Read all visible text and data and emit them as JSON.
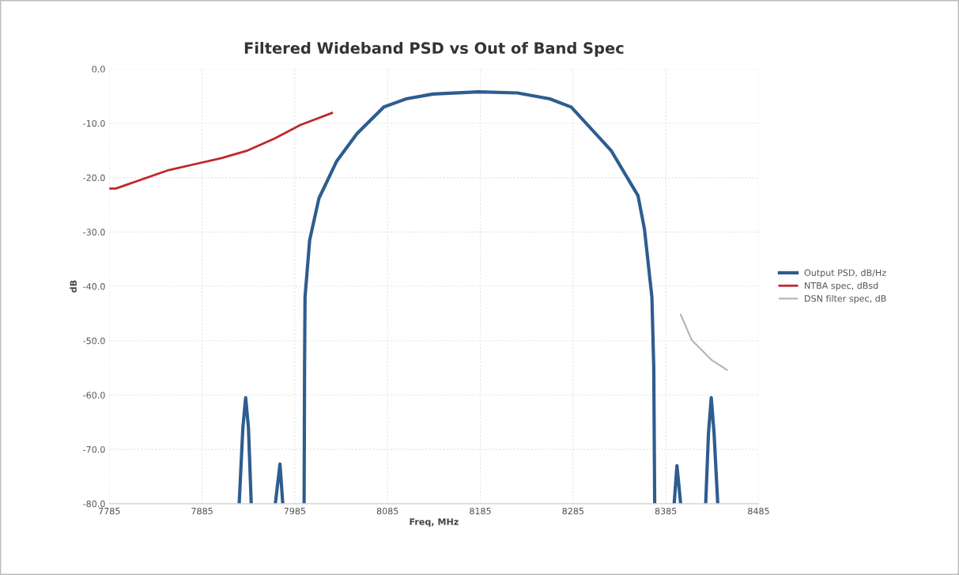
{
  "chart_data": {
    "type": "line",
    "title": "Filtered Wideband PSD vs Out of Band Spec",
    "xlabel": "Freq, MHz",
    "ylabel": "dB",
    "xlim": [
      7785,
      8485
    ],
    "xticks": [
      7785,
      7885,
      7985,
      8085,
      8185,
      8285,
      8385,
      8485
    ],
    "ylim": [
      -80,
      0
    ],
    "yticks": [
      {
        "value": 0,
        "label": "0.0"
      },
      {
        "value": -10,
        "label": "-10.0"
      },
      {
        "value": -20,
        "label": "-20.0"
      },
      {
        "value": -30,
        "label": "-30.0"
      },
      {
        "value": -40,
        "label": "-40.0"
      },
      {
        "value": -50,
        "label": "-50.0"
      },
      {
        "value": -60,
        "label": "-60.0"
      },
      {
        "value": -70,
        "label": "-70.0"
      },
      {
        "value": -80,
        "label": "-80.0"
      }
    ],
    "grid": true,
    "legend": "right",
    "marker": "none",
    "line_style": "solid",
    "series": [
      {
        "name": "Output PSD, dB/Hz",
        "color": "#2e5d8f",
        "x": [
          7925,
          7929,
          7932,
          7935,
          7938,
          7950,
          7964,
          7969,
          7972,
          7984,
          7995,
          7995.5,
          7996,
          8001,
          8011,
          8030,
          8052,
          8081,
          8105,
          8134,
          8183,
          8225,
          8260,
          8283,
          8326,
          8355,
          8362,
          8370,
          8372,
          8373,
          8384,
          8394,
          8397,
          8401,
          8415,
          8428,
          8431,
          8434,
          8437,
          8441
        ],
        "values": [
          -80,
          -66,
          -60.5,
          -66,
          -80,
          null,
          -80,
          -72.7,
          -80,
          null,
          -80,
          -55,
          -42,
          -31.5,
          -23.8,
          -17,
          -11.9,
          -7,
          -5.5,
          -4.6,
          -4.2,
          -4.4,
          -5.5,
          -7,
          -15,
          -23.3,
          -29.5,
          -42,
          -55,
          -80,
          null,
          -80,
          -73,
          -80,
          null,
          -80,
          -67,
          -60.5,
          -67,
          -80
        ]
      },
      {
        "name": "NTBA spec, dBsd",
        "color": "#c0282d",
        "x": [
          7785,
          7792,
          7849,
          7906,
          7934,
          7963,
          7991,
          8025
        ],
        "values": [
          -22,
          -22,
          -18.6,
          -16.4,
          -15,
          -12.8,
          -10.3,
          -8.1
        ]
      },
      {
        "name": "DSN filter spec, dB",
        "color": "#b4b4b4",
        "x": [
          8401,
          8413,
          8434,
          8451
        ],
        "values": [
          -45.2,
          -49.9,
          -53.5,
          -55.4
        ]
      }
    ]
  }
}
